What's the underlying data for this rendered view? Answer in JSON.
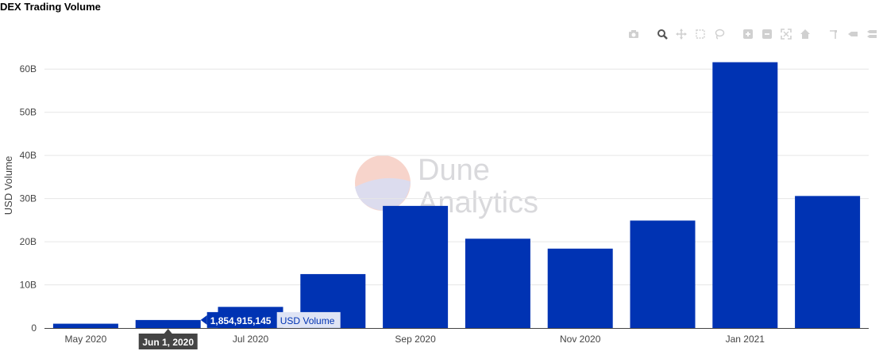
{
  "header": {
    "title": "DEX Trading Volume"
  },
  "watermark": {
    "line1": "Dune",
    "line2": "Analytics"
  },
  "toolbar": {
    "icons": [
      "camera-icon",
      "zoom-icon",
      "pan-icon",
      "box-select-icon",
      "lasso-icon",
      "zoom-in-icon",
      "zoom-out-icon",
      "autoscale-icon",
      "reset-axes-icon",
      "spike-lines-icon",
      "hover-closest-icon",
      "hover-compare-icon"
    ]
  },
  "colors": {
    "bar": "#0033b3",
    "grid": "#e6e6e6",
    "axis": "#444444"
  },
  "hover": {
    "x_label": "Jun 1, 2020",
    "value_label": "1,854,915,145",
    "series_label": "USD Volume",
    "index": 1
  },
  "chart_data": {
    "type": "bar",
    "title": "DEX Trading Volume",
    "xlabel": "",
    "ylabel": "USD Volume",
    "categories": [
      "2020-05",
      "2020-06",
      "2020-07",
      "2020-08",
      "2020-09",
      "2020-10",
      "2020-11",
      "2020-12",
      "2021-01",
      "2021-02"
    ],
    "series": [
      {
        "name": "USD Volume",
        "values": [
          1000000000,
          1854915145,
          4900000000,
          12500000000,
          28300000000,
          20700000000,
          18400000000,
          24900000000,
          61600000000,
          30600000000
        ]
      }
    ],
    "ylim": [
      0,
      65000000000
    ],
    "yticks": [
      0,
      10000000000,
      20000000000,
      30000000000,
      40000000000,
      50000000000,
      60000000000
    ],
    "ytick_labels": [
      "0",
      "10B",
      "20B",
      "30B",
      "40B",
      "50B",
      "60B"
    ],
    "xtick_labels": [
      {
        "index": 0,
        "label": "May 2020"
      },
      {
        "index": 2,
        "label": "Jul 2020"
      },
      {
        "index": 4,
        "label": "Sep 2020"
      },
      {
        "index": 6,
        "label": "Nov 2020"
      },
      {
        "index": 8,
        "label": "Jan 2021"
      }
    ],
    "grid": true,
    "legend": "none"
  }
}
